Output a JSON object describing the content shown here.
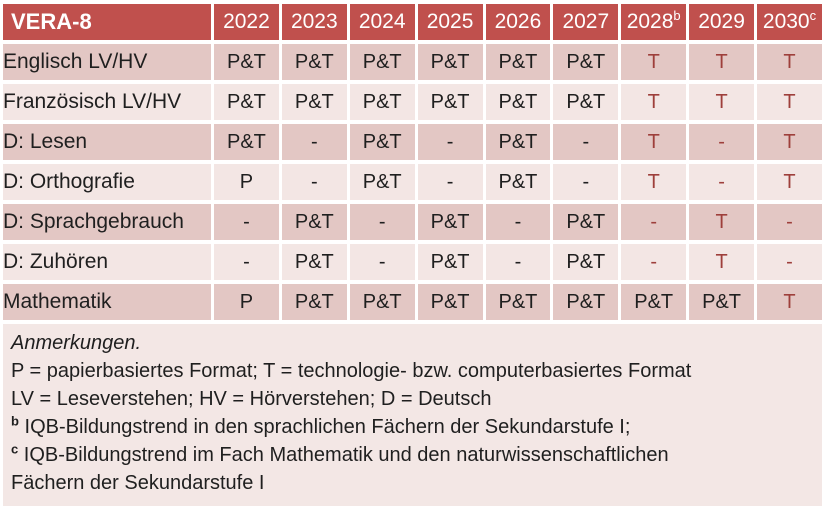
{
  "colors": {
    "header_bg": "#C0504D",
    "header_text": "#FFFFFF",
    "row_dark": "#E3C7C4",
    "row_light": "#F3E6E4",
    "notes_bg": "#F3E7E5",
    "highlight_text": "#9E3F3B",
    "body_text": "#1F1F1F"
  },
  "table": {
    "corner_label": "VERA-8",
    "columns": [
      {
        "label": "2022",
        "sup": ""
      },
      {
        "label": "2023",
        "sup": ""
      },
      {
        "label": "2024",
        "sup": ""
      },
      {
        "label": "2025",
        "sup": ""
      },
      {
        "label": "2026",
        "sup": ""
      },
      {
        "label": "2027",
        "sup": ""
      },
      {
        "label": "2028",
        "sup": "b"
      },
      {
        "label": "2029",
        "sup": ""
      },
      {
        "label": "2030",
        "sup": "c"
      }
    ],
    "rows": [
      {
        "label": "Englisch LV/HV",
        "cells": [
          {
            "v": "P&T",
            "red": false
          },
          {
            "v": "P&T",
            "red": false
          },
          {
            "v": "P&T",
            "red": false
          },
          {
            "v": "P&T",
            "red": false
          },
          {
            "v": "P&T",
            "red": false
          },
          {
            "v": "P&T",
            "red": false
          },
          {
            "v": "T",
            "red": true
          },
          {
            "v": "T",
            "red": true
          },
          {
            "v": "T",
            "red": true
          }
        ]
      },
      {
        "label": "Französisch LV/HV",
        "cells": [
          {
            "v": "P&T",
            "red": false
          },
          {
            "v": "P&T",
            "red": false
          },
          {
            "v": "P&T",
            "red": false
          },
          {
            "v": "P&T",
            "red": false
          },
          {
            "v": "P&T",
            "red": false
          },
          {
            "v": "P&T",
            "red": false
          },
          {
            "v": "T",
            "red": true
          },
          {
            "v": "T",
            "red": true
          },
          {
            "v": "T",
            "red": true
          }
        ]
      },
      {
        "label": "D: Lesen",
        "cells": [
          {
            "v": "P&T",
            "red": false
          },
          {
            "v": "-",
            "red": false
          },
          {
            "v": "P&T",
            "red": false
          },
          {
            "v": "-",
            "red": false
          },
          {
            "v": "P&T",
            "red": false
          },
          {
            "v": "-",
            "red": false
          },
          {
            "v": "T",
            "red": true
          },
          {
            "v": "-",
            "red": true
          },
          {
            "v": "T",
            "red": true
          }
        ]
      },
      {
        "label": "D: Orthografie",
        "cells": [
          {
            "v": "P",
            "red": false
          },
          {
            "v": "-",
            "red": false
          },
          {
            "v": "P&T",
            "red": false
          },
          {
            "v": "-",
            "red": false
          },
          {
            "v": "P&T",
            "red": false
          },
          {
            "v": "-",
            "red": false
          },
          {
            "v": "T",
            "red": true
          },
          {
            "v": "-",
            "red": true
          },
          {
            "v": "T",
            "red": true
          }
        ]
      },
      {
        "label": "D: Sprachgebrauch",
        "cells": [
          {
            "v": "-",
            "red": false
          },
          {
            "v": "P&T",
            "red": false
          },
          {
            "v": "-",
            "red": false
          },
          {
            "v": "P&T",
            "red": false
          },
          {
            "v": "-",
            "red": false
          },
          {
            "v": "P&T",
            "red": false
          },
          {
            "v": "-",
            "red": true
          },
          {
            "v": "T",
            "red": true
          },
          {
            "v": "-",
            "red": true
          }
        ]
      },
      {
        "label": "D: Zuhören",
        "cells": [
          {
            "v": "-",
            "red": false
          },
          {
            "v": "P&T",
            "red": false
          },
          {
            "v": "-",
            "red": false
          },
          {
            "v": "P&T",
            "red": false
          },
          {
            "v": "-",
            "red": false
          },
          {
            "v": "P&T",
            "red": false
          },
          {
            "v": "-",
            "red": true
          },
          {
            "v": "T",
            "red": true
          },
          {
            "v": "-",
            "red": true
          }
        ]
      },
      {
        "label": "Mathematik",
        "cells": [
          {
            "v": "P",
            "red": false
          },
          {
            "v": "P&T",
            "red": false
          },
          {
            "v": "P&T",
            "red": false
          },
          {
            "v": "P&T",
            "red": false
          },
          {
            "v": "P&T",
            "red": false
          },
          {
            "v": "P&T",
            "red": false
          },
          {
            "v": "P&T",
            "red": false
          },
          {
            "v": "P&T",
            "red": false
          },
          {
            "v": "T",
            "red": true
          }
        ]
      }
    ]
  },
  "notes": {
    "lines": [
      {
        "sup": "",
        "text": "Anmerkungen.",
        "italic": true
      },
      {
        "sup": "",
        "text": "P = papierbasiertes Format; T = technologie- bzw. computerbasiertes Format",
        "italic": false
      },
      {
        "sup": "",
        "text": "LV = Leseverstehen; HV = Hörverstehen; D = Deutsch",
        "italic": false
      },
      {
        "sup": "b",
        "text": "IQB-Bildungstrend in den sprachlichen Fächern der Sekundarstufe I;",
        "italic": false
      },
      {
        "sup": "c",
        "text": "IQB-Bildungstrend im Fach Mathematik und den naturwissenschaftlichen",
        "italic": false
      },
      {
        "sup": "",
        "text": "Fächern der Sekundarstufe I",
        "italic": false
      }
    ]
  }
}
